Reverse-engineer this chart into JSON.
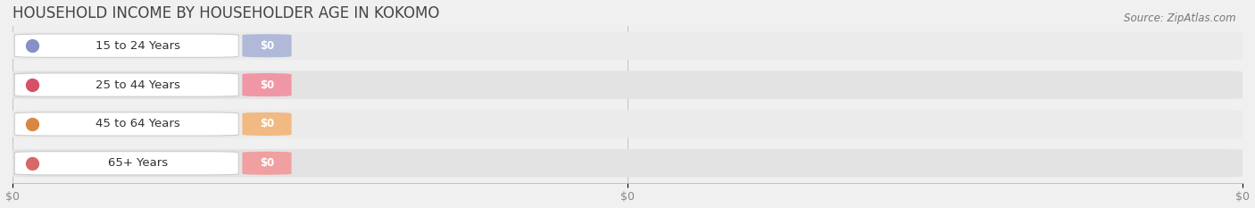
{
  "title": "HOUSEHOLD INCOME BY HOUSEHOLDER AGE IN KOKOMO",
  "source_text": "Source: ZipAtlas.com",
  "categories": [
    "15 to 24 Years",
    "25 to 44 Years",
    "45 to 64 Years",
    "65+ Years"
  ],
  "values": [
    0,
    0,
    0,
    0
  ],
  "bar_colors": [
    "#b0bad8",
    "#f097a5",
    "#f0ba82",
    "#f0a0a0"
  ],
  "dot_colors": [
    "#8890c8",
    "#d85068",
    "#d88840",
    "#d86868"
  ],
  "row_bg_colors": [
    "#ebebeb",
    "#e3e3e3",
    "#ebebeb",
    "#e3e3e3"
  ],
  "background_color": "#f0f0f0",
  "title_color": "#444444",
  "label_color": "#333333",
  "tick_color": "#888888",
  "title_fontsize": 12,
  "label_fontsize": 9.5,
  "value_fontsize": 8.5,
  "source_fontsize": 8.5,
  "tick_fontsize": 9,
  "x_tick_positions": [
    0,
    0.5,
    1.0
  ],
  "x_tick_labels": [
    "$0",
    "$0",
    "$0"
  ]
}
